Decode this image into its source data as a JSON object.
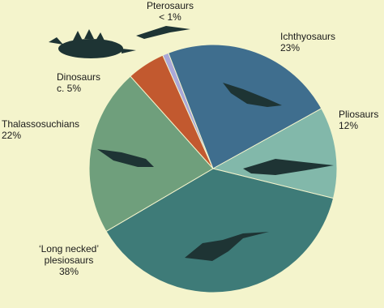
{
  "chart_data": {
    "type": "pie",
    "categories": [
      "Pterosaurs",
      "Ichthyosaurs",
      "Pliosaurs",
      "‘Long necked’ plesiosaurs",
      "Thalassosuchians",
      "Dinosaurs"
    ],
    "values": [
      0.8,
      23,
      12,
      38,
      22,
      5
    ],
    "value_labels": [
      "< 1%",
      "23%",
      "12%",
      "38%",
      "22%",
      "c. 5%"
    ],
    "colors": [
      "#aaa8d8",
      "#3f6e8e",
      "#82b8aa",
      "#3e7b78",
      "#6f9f7c",
      "#c2592f"
    ]
  }
}
